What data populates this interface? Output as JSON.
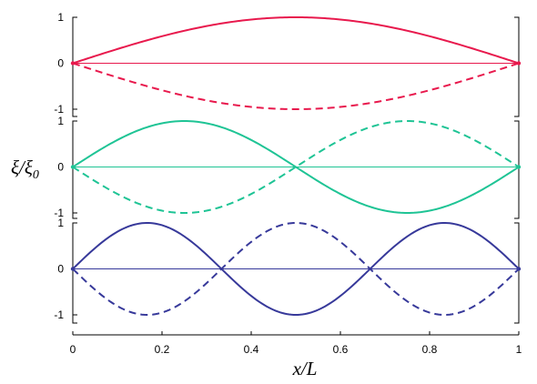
{
  "chart_data": {
    "type": "line",
    "xlabel": "x/L",
    "ylabel": {
      "main": "ξ/ξ",
      "subscript": "0"
    },
    "xlim": [
      0,
      1
    ],
    "x_ticks": [
      "0",
      "0.2",
      "0.4",
      "0.6",
      "0.8",
      "1"
    ],
    "y_ticks": [
      "1",
      "0",
      "-1"
    ],
    "grid": false,
    "legend": "none",
    "panels": [
      {
        "mode": 1,
        "color": "#e8194d",
        "ylim": [
          -1,
          1
        ],
        "series": [
          {
            "style": "solid",
            "function": "sin(1*pi*x)"
          },
          {
            "style": "dashed",
            "function": "-sin(1*pi*x)"
          },
          {
            "style": "thin",
            "function": "0"
          }
        ]
      },
      {
        "mode": 2,
        "color": "#1fc495",
        "ylim": [
          -1,
          1
        ],
        "series": [
          {
            "style": "solid",
            "function": "sin(2*pi*x)"
          },
          {
            "style": "dashed",
            "function": "-sin(2*pi*x)"
          },
          {
            "style": "thin",
            "function": "0"
          }
        ]
      },
      {
        "mode": 3,
        "color": "#37399a",
        "ylim": [
          -1,
          1
        ],
        "series": [
          {
            "style": "solid",
            "function": "sin(3*pi*x)"
          },
          {
            "style": "dashed",
            "function": "-sin(3*pi*x)"
          },
          {
            "style": "thin",
            "function": "0"
          }
        ]
      }
    ]
  }
}
